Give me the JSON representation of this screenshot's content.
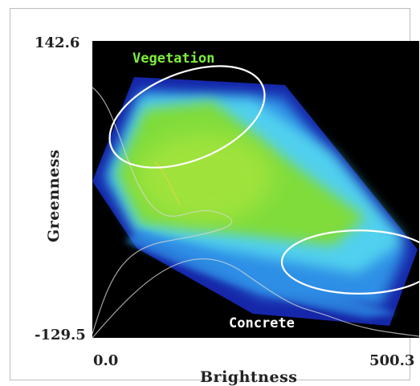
{
  "chart_data": {
    "type": "heatmap",
    "title": "",
    "xlabel": "Brightness",
    "ylabel": "Greenness",
    "xlim": [
      0.0,
      500.3
    ],
    "ylim": [
      -129.5,
      142.6
    ],
    "x_tick_labels": [
      "0.0",
      "500.3"
    ],
    "y_tick_labels": [
      "142.6",
      "-129.5"
    ],
    "annotations": [
      {
        "label": "Vegetation",
        "x_center": 145,
        "y_center": 73,
        "rx": 125,
        "ry": 40,
        "angle_deg": -22
      },
      {
        "label": "Concrete",
        "x_center": 408,
        "y_center": -60,
        "rx": 118,
        "ry": 29,
        "angle_deg": 0
      }
    ],
    "colors": {
      "background": "#000000",
      "low_density": "#1626a8",
      "mid_density": "#2f8fe6",
      "edge": "#54d8f0",
      "high_density": "#7fdc3a",
      "peak_density": "#a6e43c",
      "ellipse": "#ffffff",
      "profile_curves": "#d8d8d8"
    }
  }
}
